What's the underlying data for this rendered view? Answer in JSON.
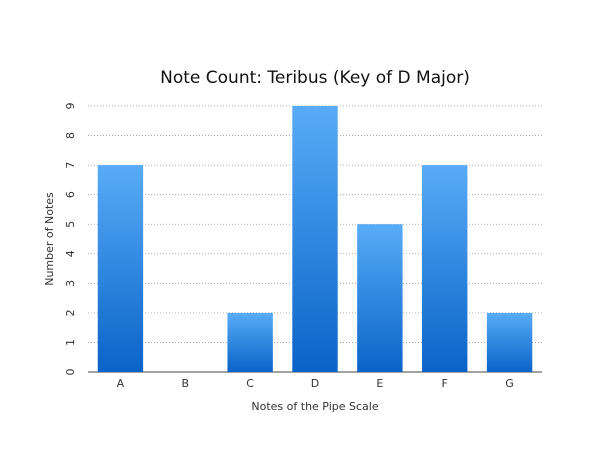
{
  "chart_data": {
    "type": "bar",
    "title": "Note Count: Teribus (Key of D Major)",
    "x_label": "Notes of the Pipe Scale",
    "y_label": "Number of Notes",
    "categories": [
      "A",
      "B",
      "C",
      "D",
      "E",
      "F",
      "G"
    ],
    "values": [
      7,
      0,
      2,
      9,
      5,
      7,
      2
    ],
    "gradient": {
      "top": "#58acf7",
      "bottom": "#0a63c8"
    },
    "ylim": [
      0,
      9
    ],
    "yticks": [
      0,
      1,
      2,
      3,
      4,
      5,
      6,
      7,
      8,
      9
    ],
    "grid": true
  }
}
